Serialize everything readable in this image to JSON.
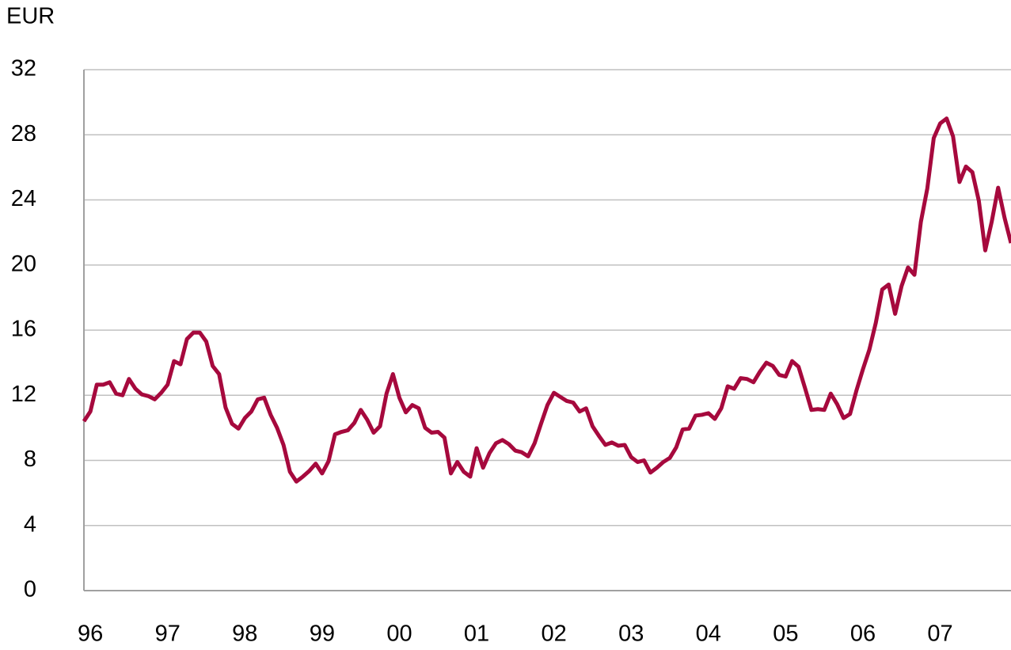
{
  "chart_data": {
    "type": "line",
    "y_label": "EUR",
    "categories": [
      null,
      "96",
      null,
      null,
      null,
      null,
      null,
      null,
      null,
      null,
      null,
      null,
      null,
      "97",
      null,
      null,
      null,
      null,
      null,
      null,
      null,
      null,
      null,
      null,
      null,
      "98",
      null,
      null,
      null,
      null,
      null,
      null,
      null,
      null,
      null,
      null,
      null,
      "99",
      null,
      null,
      null,
      null,
      null,
      null,
      null,
      null,
      null,
      null,
      null,
      "00",
      null,
      null,
      null,
      null,
      null,
      null,
      null,
      null,
      null,
      null,
      null,
      "01",
      null,
      null,
      null,
      null,
      null,
      null,
      null,
      null,
      null,
      null,
      null,
      "02",
      null,
      null,
      null,
      null,
      null,
      null,
      null,
      null,
      null,
      null,
      null,
      "03",
      null,
      null,
      null,
      null,
      null,
      null,
      null,
      null,
      null,
      null,
      null,
      "04",
      null,
      null,
      null,
      null,
      null,
      null,
      null,
      null,
      null,
      null,
      null,
      "05",
      null,
      null,
      null,
      null,
      null,
      null,
      null,
      null,
      null,
      null,
      null,
      "06",
      null,
      null,
      null,
      null,
      null,
      null,
      null,
      null,
      null,
      null,
      null,
      "07",
      null,
      null,
      null,
      null,
      null,
      null,
      null,
      null,
      null,
      null,
      null
    ],
    "series": [
      {
        "color": "#a6093d",
        "values": [
          10.4,
          11.0,
          12.65,
          12.65,
          12.8,
          12.1,
          12.0,
          13.0,
          12.4,
          12.05,
          11.95,
          11.75,
          12.15,
          12.65,
          14.1,
          13.9,
          15.45,
          15.85,
          15.85,
          15.3,
          13.8,
          13.3,
          11.25,
          10.25,
          9.95,
          10.6,
          11.0,
          11.75,
          11.85,
          10.8,
          10.0,
          8.95,
          7.3,
          6.7,
          7.0,
          7.35,
          7.8,
          7.2,
          7.95,
          9.6,
          9.75,
          9.85,
          10.3,
          11.1,
          10.5,
          9.7,
          10.1,
          12.1,
          13.3,
          11.85,
          10.95,
          11.4,
          11.2,
          10.0,
          9.7,
          9.75,
          9.4,
          7.2,
          7.9,
          7.3,
          7.0,
          8.75,
          7.55,
          8.45,
          9.05,
          9.25,
          9.0,
          8.6,
          8.5,
          8.25,
          9.05,
          10.25,
          11.4,
          12.15,
          11.9,
          11.65,
          11.55,
          11.0,
          11.2,
          10.1,
          9.5,
          8.95,
          9.1,
          8.9,
          8.95,
          8.2,
          7.9,
          8.0,
          7.25,
          7.55,
          7.9,
          8.15,
          8.8,
          9.9,
          9.95,
          10.75,
          10.8,
          10.9,
          10.55,
          11.2,
          12.55,
          12.4,
          13.05,
          13.0,
          12.8,
          13.45,
          14.0,
          13.8,
          13.25,
          13.15,
          14.1,
          13.75,
          12.45,
          11.1,
          11.15,
          11.1,
          12.1,
          11.45,
          10.6,
          10.85,
          12.3,
          13.6,
          14.8,
          16.45,
          18.5,
          18.8,
          17.0,
          18.7,
          19.85,
          19.4,
          22.65,
          24.7,
          27.8,
          28.7,
          29.0,
          27.9,
          25.1,
          26.05,
          25.7,
          23.95,
          20.9,
          22.65,
          24.75,
          22.9,
          21.35
        ]
      }
    ],
    "ylim": [
      0,
      32
    ],
    "yticks": [
      0,
      4,
      8,
      12,
      16,
      20,
      24,
      28,
      32
    ],
    "grid": true
  }
}
